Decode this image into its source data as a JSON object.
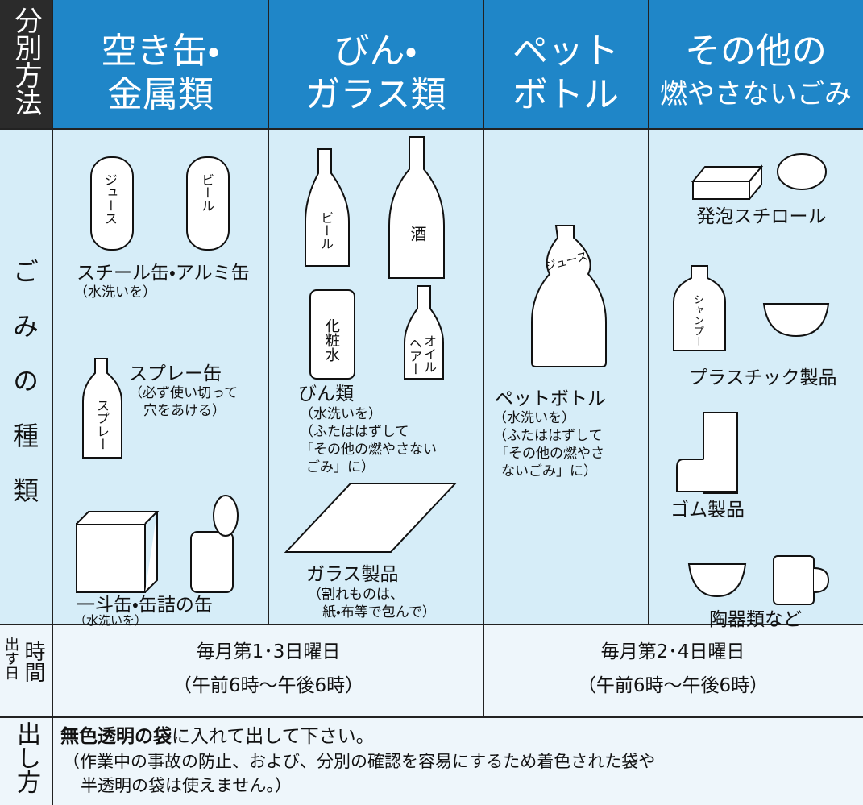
{
  "header": {
    "method_label": "分別方法",
    "columns": [
      [
        "空き缶・",
        "金属類"
      ],
      [
        "びん・",
        "ガラス類"
      ],
      [
        "ペット",
        "ボトル"
      ],
      [
        "その他の",
        "燃やさないごみ"
      ]
    ]
  },
  "types": {
    "label": "ごみの種類",
    "cans": {
      "icon_labels": [
        "ジュース",
        "ビール"
      ],
      "name": "スチール缶・アルミ缶",
      "notes": [
        "（水洗いを）"
      ]
    },
    "spray": {
      "icon_label": "スプレー",
      "name": "スプレー缶",
      "notes": [
        "（必ず使い切って",
        "穴をあける）"
      ]
    },
    "tins": {
      "name": "一斗缶・缶詰の缶",
      "notes": [
        "（水洗いを）"
      ]
    },
    "bottles": {
      "icon_labels": [
        "ビール",
        "酒",
        "化粧水",
        "オイル",
        "ヘアー"
      ],
      "name": "びん類",
      "notes": [
        "（水洗いを）",
        "（ふたははずして",
        "「その他の燃やさない",
        "ごみ」に）"
      ]
    },
    "glass": {
      "name": "ガラス製品",
      "notes": [
        "（割れものは、",
        "紙・布等で包んで）"
      ]
    },
    "pet": {
      "icon_label": "ジュース",
      "name": "ペットボトル",
      "notes": [
        "（水洗いを）",
        "（ふたははずして",
        "「その他の燃やさ",
        "ないごみ」に）"
      ]
    },
    "styrofoam": {
      "name": "発泡スチロール"
    },
    "plastic": {
      "icon_label": "シャンプー",
      "name": "プラスチック製品"
    },
    "rubber": {
      "name": "ゴム製品"
    },
    "ceramics": {
      "name": "陶器類など"
    }
  },
  "schedule": {
    "label_day": "出す日",
    "label_time": "時間",
    "group_a": [
      "毎月第1･3日曜日",
      "（午前6時～午後6時）"
    ],
    "group_b": [
      "毎月第2･4日曜日",
      "（午前6時～午後6時）"
    ]
  },
  "how": {
    "label": "出し方",
    "emphasis": "無色透明の袋",
    "text": "に入れて出して下さい。",
    "notes": [
      "（作業中の事故の防止、および、分別の確認を容易にするため着色された袋や",
      "半透明の袋は使えません。）"
    ]
  }
}
